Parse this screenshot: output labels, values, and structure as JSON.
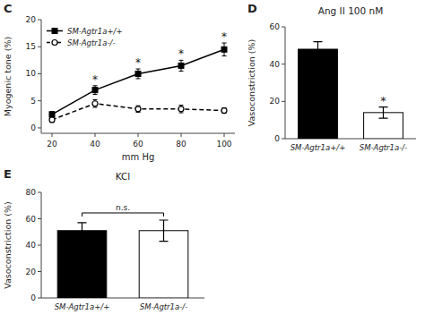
{
  "chart_data": [
    {
      "type": "line",
      "xlabel": "mm Hg",
      "ylabel": "Myogenic tone (%)",
      "x": [
        20,
        40,
        60,
        80,
        100
      ],
      "xlim": [
        15,
        105
      ],
      "ylim": [
        -1,
        20
      ],
      "xticks": [
        20,
        40,
        60,
        80,
        100
      ],
      "yticks": [
        0,
        5,
        10,
        15,
        20
      ],
      "legend": "upper left",
      "series": [
        {
          "name": "SM-Agtr1a+/+",
          "color": "black",
          "marker": "square",
          "line_style": "solid",
          "values": [
            2.5,
            7.0,
            10.0,
            11.5,
            14.5
          ],
          "errors": [
            0.5,
            0.8,
            0.9,
            1.0,
            1.2
          ]
        },
        {
          "name": "SM-Agtr1a-/-",
          "color": "black",
          "marker": "open-circle",
          "line_style": "dashed",
          "values": [
            1.5,
            4.5,
            3.5,
            3.5,
            3.2
          ],
          "errors": [
            0.4,
            0.7,
            0.6,
            0.7,
            0.5
          ]
        }
      ],
      "annotations": [
        {
          "text": "C"
        },
        {
          "text": "*",
          "x": 40
        },
        {
          "text": "*",
          "x": 60
        },
        {
          "text": "*",
          "x": 80
        },
        {
          "text": "*",
          "x": 100
        }
      ]
    },
    {
      "type": "bar",
      "title": "Ang II 100 nM",
      "ylabel": "Vasoconstriction (%)",
      "categories": [
        "SM-Agtr1a+/+",
        "SM-Agtr1a-/-"
      ],
      "values": [
        48,
        14
      ],
      "errors": [
        4,
        3
      ],
      "colors": [
        "black",
        "white"
      ],
      "ylim": [
        0,
        60
      ],
      "yticks": [
        0,
        20,
        40,
        60
      ],
      "annotations": [
        {
          "text": "D"
        },
        {
          "text": "*",
          "category": 1
        }
      ]
    },
    {
      "type": "bar",
      "title": "KCl",
      "ylabel": "Vasoconstriction (%)",
      "categories": [
        "SM-Agtr1a+/+",
        "SM-Agtr1a-/-"
      ],
      "values": [
        51,
        51
      ],
      "errors": [
        6,
        8
      ],
      "colors": [
        "black",
        "white"
      ],
      "ylim": [
        0,
        80
      ],
      "yticks": [
        0,
        20,
        40,
        60,
        80
      ],
      "annotations": [
        {
          "text": "E"
        },
        {
          "text": "n.s.",
          "categories": [
            0,
            1
          ]
        }
      ]
    }
  ]
}
